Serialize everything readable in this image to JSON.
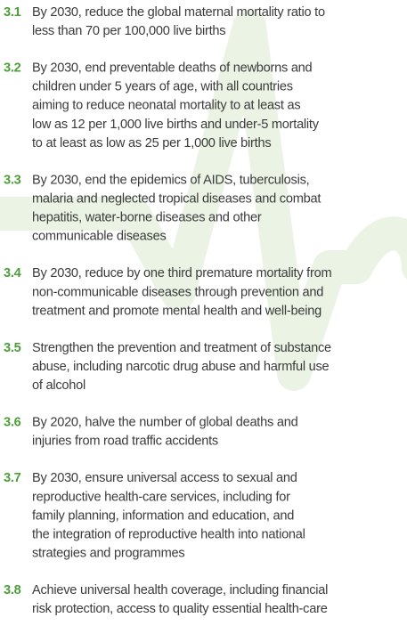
{
  "targets": [
    {
      "number": "3.1",
      "lines": [
        "By 2030, reduce the global maternal mortality ratio to",
        "less than 70 per 100,000 live births"
      ]
    },
    {
      "number": "3.2",
      "lines": [
        "By 2030, end preventable deaths of newborns and",
        "children under 5 years of age, with all countries",
        "aiming to reduce neonatal mortality to at least as",
        "low as 12 per 1,000 live births and under-5 mortality",
        "to at least as low as 25 per 1,000 live births"
      ]
    },
    {
      "number": "3.3",
      "lines": [
        "By 2030, end the epidemics of AIDS, tuberculosis,",
        "malaria and neglected tropical diseases and combat",
        "hepatitis, water-borne diseases and other",
        "communicable diseases"
      ]
    },
    {
      "number": "3.4",
      "lines": [
        "By 2030, reduce by one third premature mortality from",
        "non-communicable diseases through prevention and",
        "treatment and promote mental health and well-being"
      ]
    },
    {
      "number": "3.5",
      "lines": [
        "Strengthen the prevention and treatment of substance",
        "abuse, including narcotic drug abuse and harmful use",
        "of alcohol"
      ]
    },
    {
      "number": "3.6",
      "lines": [
        "By 2020, halve the number of global deaths and",
        "injuries from road traffic accidents"
      ]
    },
    {
      "number": "3.7",
      "lines": [
        "By 2030, ensure universal access to sexual and",
        "reproductive health-care services, including for",
        "family planning, information and education, and",
        "the integration of reproductive health into national",
        "strategies and programmes"
      ]
    },
    {
      "number": "3.8",
      "lines": [
        "Achieve universal health coverage, including financial",
        "risk protection, access to quality essential health-care"
      ]
    }
  ]
}
